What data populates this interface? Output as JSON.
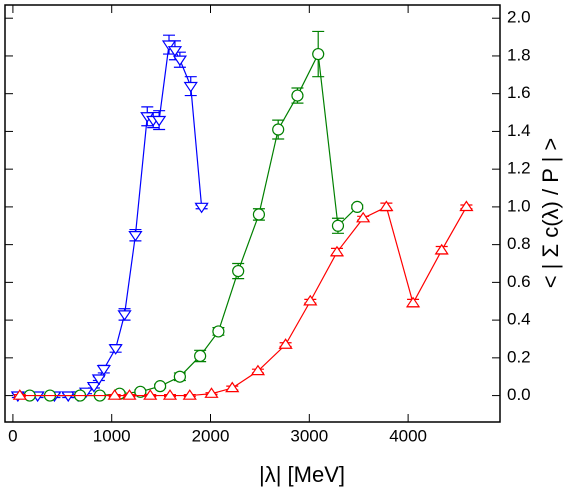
{
  "chart_data": {
    "type": "line",
    "xlabel": "|λ|  [MeV]",
    "ylabel": "< | Σ c(λ) / P | >",
    "xlim": [
      -80,
      4930
    ],
    "ylim": [
      -0.14,
      2.07
    ],
    "xticks": [
      0,
      1000,
      2000,
      3000,
      4000
    ],
    "yticks": [
      {
        "value": 0,
        "label": "0.0"
      },
      {
        "value": 0.2,
        "label": "0.2"
      },
      {
        "value": 0.4,
        "label": "0.4"
      },
      {
        "value": 0.6,
        "label": "0.6"
      },
      {
        "value": 0.8,
        "label": "0.8"
      },
      {
        "value": 1.0,
        "label": "1.0"
      },
      {
        "value": 1.2,
        "label": "1.2"
      },
      {
        "value": 1.4,
        "label": "1.4"
      },
      {
        "value": 1.6,
        "label": "1.6"
      },
      {
        "value": 1.8,
        "label": "1.8"
      },
      {
        "value": 2.0,
        "label": "2.0"
      }
    ],
    "series": [
      {
        "color": "#0000ff",
        "marker": "triangle-down",
        "x": [
          50,
          250,
          420,
          560,
          660,
          740,
          820,
          870,
          920,
          1040,
          1130,
          1240,
          1360,
          1420,
          1480,
          1580,
          1640,
          1690,
          1800,
          1910
        ],
        "values": [
          0,
          0,
          0,
          0,
          0,
          0.02,
          0.05,
          0.09,
          0.14,
          0.25,
          0.43,
          0.85,
          1.48,
          1.46,
          1.46,
          1.86,
          1.83,
          1.78,
          1.64,
          1.0
        ],
        "errors": [
          0.01,
          0.01,
          0.01,
          0.01,
          0.01,
          0.01,
          0.01,
          0.01,
          0.02,
          0.02,
          0.03,
          0.03,
          0.05,
          0.04,
          0.05,
          0.05,
          0.05,
          0.04,
          0.05,
          0.01
        ]
      },
      {
        "color": "#008000",
        "marker": "circle",
        "x": [
          170,
          375,
          680,
          880,
          1080,
          1290,
          1490,
          1690,
          1895,
          2080,
          2280,
          2490,
          2685,
          2880,
          3090,
          3290,
          3485
        ],
        "values": [
          0,
          0,
          0,
          0,
          0.01,
          0.02,
          0.05,
          0.1,
          0.21,
          0.34,
          0.66,
          0.96,
          1.41,
          1.59,
          1.81,
          0.9,
          1.0
        ],
        "errors": [
          0.005,
          0.005,
          0.005,
          0.005,
          0.01,
          0.01,
          0.01,
          0.02,
          0.03,
          0.02,
          0.04,
          0.03,
          0.05,
          0.04,
          0.12,
          0.04,
          0.01
        ]
      },
      {
        "color": "#ff0000",
        "marker": "triangle-up",
        "x": [
          70,
          1030,
          1180,
          1390,
          1590,
          1790,
          2010,
          2220,
          2480,
          2760,
          3010,
          3280,
          3545,
          3780,
          4050,
          4340,
          4590
        ],
        "values": [
          0,
          0,
          0,
          0,
          0,
          0,
          0.01,
          0.04,
          0.13,
          0.27,
          0.5,
          0.76,
          0.94,
          1.0,
          0.49,
          0.77,
          1.0
        ],
        "errors": [
          0.005,
          0.005,
          0.005,
          0.005,
          0.005,
          0.005,
          0.005,
          0.01,
          0.01,
          0.01,
          0.01,
          0.02,
          0.01,
          0.02,
          0.02,
          0.02,
          0.01
        ]
      }
    ]
  }
}
